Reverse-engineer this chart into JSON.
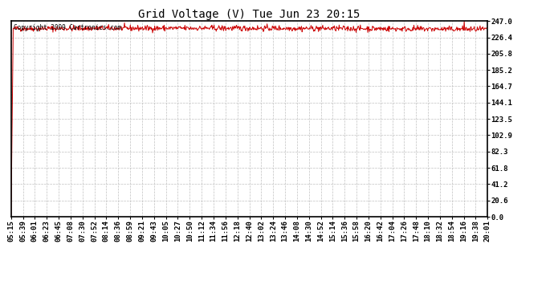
{
  "title": "Grid Voltage (V) Tue Jun 23 20:15",
  "copyright_text": "Copyright 2009 Cartronics.com",
  "line_color": "#cc0000",
  "background_color": "#ffffff",
  "grid_color": "#c0c0c0",
  "yticks": [
    0.0,
    20.6,
    41.2,
    61.8,
    82.3,
    102.9,
    123.5,
    144.1,
    164.7,
    185.2,
    205.8,
    226.4,
    247.0
  ],
  "ymin": 0.0,
  "ymax": 247.0,
  "x_labels": [
    "05:15",
    "05:39",
    "06:01",
    "06:23",
    "06:45",
    "07:08",
    "07:30",
    "07:52",
    "08:14",
    "08:36",
    "08:59",
    "09:21",
    "09:43",
    "10:05",
    "10:27",
    "10:50",
    "11:12",
    "11:34",
    "11:56",
    "12:18",
    "12:40",
    "13:02",
    "13:24",
    "13:46",
    "14:08",
    "14:30",
    "14:52",
    "15:14",
    "15:36",
    "15:58",
    "16:20",
    "16:42",
    "17:04",
    "17:26",
    "17:48",
    "18:10",
    "18:32",
    "18:54",
    "19:16",
    "19:38",
    "20:01"
  ],
  "num_points": 900,
  "base_voltage": 237.5,
  "noise_std": 1.8,
  "spike_index": 855,
  "spike_value": 247.0,
  "line_width": 0.7,
  "title_fontsize": 10,
  "tick_fontsize": 6.5,
  "border_color": "#000000",
  "figwidth": 6.9,
  "figheight": 3.75,
  "dpi": 100
}
